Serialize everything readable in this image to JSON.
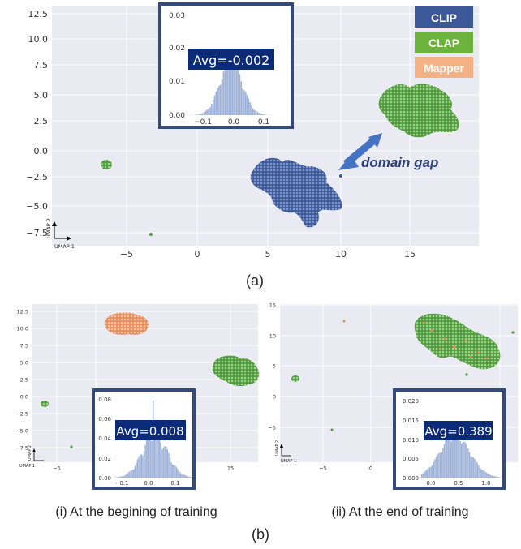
{
  "colors": {
    "clip": "#3b5998",
    "clap": "#5fae4a",
    "mapper": "#f0a67a",
    "plot_bg": "#eaeaf2",
    "inset_border": "#344a7c",
    "hist_fill": "#9fb3d8",
    "avg_bg": "#0b2a78"
  },
  "legend": [
    "CLIP",
    "CLAP",
    "Mapper"
  ],
  "annotation": "domain gap",
  "captions": {
    "a": "(a)",
    "b": "(b)",
    "i": "(i) At the begining of training",
    "ii": "(ii) At the end of training"
  },
  "chart_data": [
    {
      "type": "scatter",
      "xlabel": "UMAP 1",
      "ylabel": "UMAP 2",
      "x_ticks": [
        "−5",
        "0",
        "5",
        "10",
        "15"
      ],
      "y_ticks": [
        "12.5",
        "10.0",
        "7.5",
        "5.0",
        "2.5",
        "0.0",
        "−2.5",
        "−5.0",
        "−7.5"
      ],
      "xlim": [
        -9,
        19
      ],
      "ylim": [
        -9,
        13.5
      ],
      "clusters": [
        {
          "series": "CLIP",
          "x": 7.0,
          "y": -3.2
        },
        {
          "series": "CLAP",
          "x": 15.8,
          "y": 3.5
        },
        {
          "series": "CLAP",
          "x": -6.2,
          "y": -1.3
        },
        {
          "series": "CLAP",
          "x": -3.3,
          "y": -7.5
        }
      ],
      "inset": {
        "type": "histogram",
        "text": "Avg=-0.002",
        "x_ticks": [
          "−0.1",
          "0.0",
          "0.1"
        ],
        "y_ticks": [
          "0.03",
          "0.02",
          "0.01",
          "0.00"
        ],
        "mean": -0.002,
        "ylim": [
          0,
          0.032
        ]
      }
    },
    {
      "type": "scatter",
      "xlabel": "UMAP 1",
      "ylabel": "UMAP 2",
      "x_ticks": [
        "−5",
        "0",
        "15"
      ],
      "y_ticks": [
        "12.5",
        "10.0",
        "7.5",
        "5.0",
        "2.5",
        "0.0",
        "−2.5",
        "−5.0",
        "−7.5"
      ],
      "clusters": [
        {
          "series": "Mapper",
          "x": 6.0,
          "y": 10.5
        },
        {
          "series": "CLAP",
          "x": 15.8,
          "y": 3.5
        },
        {
          "series": "CLAP",
          "x": -6.2,
          "y": -1.3
        },
        {
          "series": "CLAP",
          "x": -3.3,
          "y": -7.5
        }
      ],
      "inset": {
        "type": "histogram",
        "text": "Avg=0.008",
        "x_ticks": [
          "−0.1",
          "0.0",
          "0.1"
        ],
        "y_ticks": [
          "0.08",
          "0.06",
          "0.04",
          "0.02",
          "0.00"
        ],
        "mean": 0.008,
        "ylim": [
          0,
          0.08
        ]
      }
    },
    {
      "type": "scatter",
      "xlabel": "UMAP 1",
      "ylabel": "UMAP 2",
      "x_ticks": [
        "−5",
        "0",
        "15"
      ],
      "y_ticks": [
        "15",
        "10",
        "5",
        "0",
        "−5"
      ],
      "clusters": [
        {
          "series": "CLAP",
          "x": 12.0,
          "y": 10.0
        },
        {
          "series": "CLAP",
          "x": -8.0,
          "y": 3.0
        }
      ],
      "inset": {
        "type": "histogram",
        "text": "Avg=0.389",
        "x_ticks": [
          "0.0",
          "0.5",
          "1.0"
        ],
        "y_ticks": [
          "0.020",
          "0.015",
          "0.010",
          "0.005",
          "0.000"
        ],
        "mean": 0.389,
        "ylim": [
          0,
          0.021
        ]
      }
    }
  ]
}
